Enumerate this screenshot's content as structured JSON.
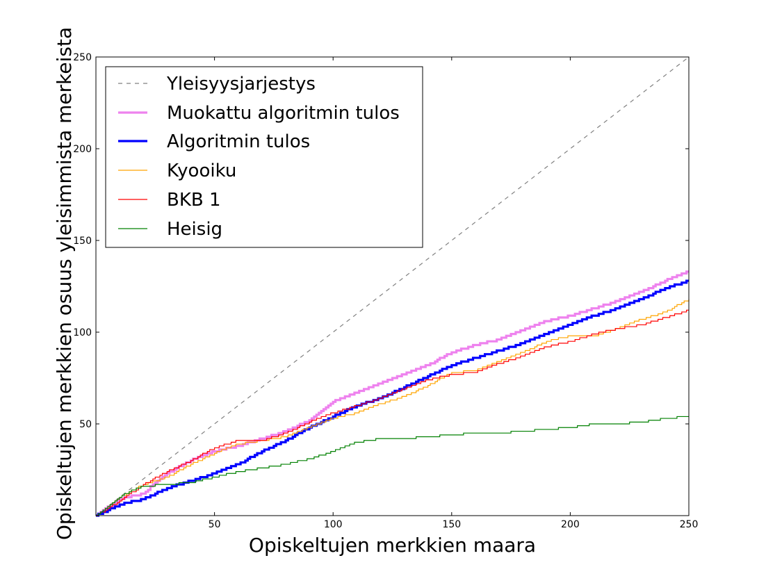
{
  "chart_data": {
    "type": "line",
    "xlabel": "Opiskeltujen merkkien maara",
    "ylabel": "Opiskeltujen merkkien osuus yleisimmista merkeista",
    "xlim": [
      0,
      250
    ],
    "ylim": [
      0,
      250
    ],
    "xticks": [
      50,
      100,
      150,
      200,
      250
    ],
    "yticks": [
      50,
      100,
      150,
      200,
      250
    ],
    "grid": false,
    "legend_position": "upper-left",
    "series": [
      {
        "name": "Yleisyysjarjestys",
        "color": "#808080",
        "style": "dashed",
        "x": [
          0,
          250
        ],
        "y": [
          0,
          250
        ]
      },
      {
        "name": "Muokattu algoritmin tulos",
        "color": "#ee82ee",
        "style": "thick",
        "x": [
          0,
          10,
          20,
          25,
          30,
          40,
          50,
          60,
          70,
          80,
          90,
          100,
          110,
          120,
          130,
          140,
          150,
          160,
          170,
          180,
          190,
          200,
          210,
          220,
          230,
          240,
          250
        ],
        "y": [
          0,
          9,
          12,
          18,
          23,
          30,
          35,
          38,
          42,
          46,
          52,
          62,
          67,
          72,
          77,
          82,
          89,
          93,
          96,
          101,
          106,
          109,
          113,
          117,
          122,
          128,
          133
        ]
      },
      {
        "name": "Algoritmin tulos",
        "color": "#0000ff",
        "style": "thick",
        "x": [
          0,
          10,
          20,
          25,
          30,
          40,
          50,
          60,
          70,
          80,
          90,
          100,
          110,
          120,
          130,
          140,
          150,
          160,
          170,
          180,
          190,
          200,
          210,
          220,
          230,
          240,
          250
        ],
        "y": [
          0,
          6,
          9,
          12,
          15,
          19,
          23,
          28,
          35,
          41,
          48,
          54,
          60,
          64,
          70,
          76,
          82,
          86,
          90,
          94,
          99,
          104,
          109,
          113,
          118,
          124,
          128
        ]
      },
      {
        "name": "Kyooiku",
        "color": "#ffa500",
        "style": "thin",
        "x": [
          0,
          10,
          20,
          30,
          40,
          50,
          60,
          70,
          80,
          90,
          100,
          110,
          120,
          130,
          140,
          150,
          160,
          170,
          180,
          190,
          200,
          210,
          220,
          230,
          240,
          250
        ],
        "y": [
          0,
          10,
          17,
          21,
          28,
          34,
          39,
          41,
          43,
          48,
          53,
          56,
          61,
          65,
          71,
          78,
          79,
          84,
          89,
          95,
          98,
          98,
          102,
          107,
          111,
          118
        ]
      },
      {
        "name": "BKB 1",
        "color": "#ff0000",
        "style": "thin",
        "x": [
          0,
          10,
          20,
          30,
          40,
          50,
          60,
          70,
          80,
          90,
          100,
          110,
          120,
          130,
          140,
          150,
          160,
          170,
          180,
          190,
          200,
          210,
          220,
          230,
          240,
          250
        ],
        "y": [
          0,
          8,
          17,
          24,
          30,
          37,
          41,
          41,
          45,
          51,
          56,
          60,
          64,
          69,
          74,
          77,
          78,
          83,
          87,
          92,
          95,
          99,
          102,
          104,
          108,
          112
        ]
      },
      {
        "name": "Heisig",
        "color": "#008000",
        "style": "thin",
        "x": [
          0,
          10,
          15,
          20,
          30,
          40,
          50,
          60,
          70,
          80,
          90,
          100,
          110,
          120,
          130,
          140,
          150,
          160,
          170,
          180,
          190,
          200,
          210,
          220,
          230,
          240,
          250
        ],
        "y": [
          0,
          10,
          14,
          16,
          17,
          18,
          21,
          24,
          26,
          28,
          31,
          35,
          40,
          42,
          42,
          43,
          44,
          45,
          45,
          46,
          47,
          48,
          50,
          50,
          51,
          53,
          54
        ]
      }
    ]
  }
}
